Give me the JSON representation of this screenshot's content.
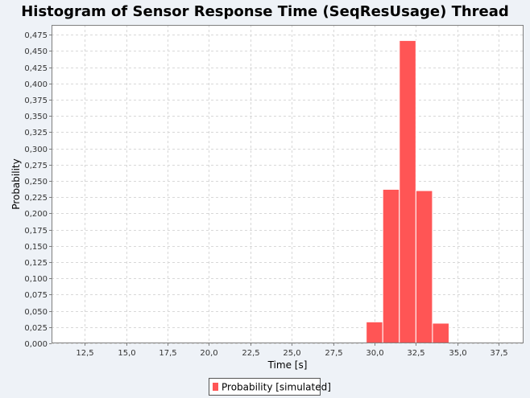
{
  "chart_data": {
    "type": "bar",
    "title": "Histogram of Sensor Response Time (SeqResUsage) Thread",
    "xlabel": "Time [s]",
    "ylabel": "Probability",
    "xlim": [
      10.5,
      39.0
    ],
    "ylim": [
      0.0,
      0.49
    ],
    "x_ticks": [
      "12,5",
      "15,0",
      "17,5",
      "20,0",
      "22,5",
      "25,0",
      "27,5",
      "30,0",
      "32,5",
      "35,0",
      "37,5"
    ],
    "y_ticks": [
      "0,000",
      "0,025",
      "0,050",
      "0,075",
      "0,100",
      "0,125",
      "0,150",
      "0,175",
      "0,200",
      "0,225",
      "0,250",
      "0,275",
      "0,300",
      "0,325",
      "0,350",
      "0,375",
      "0,400",
      "0,425",
      "0,450",
      "0,475"
    ],
    "bin_width": 1.0,
    "series": [
      {
        "name": "Probability [simulated]",
        "color": "#ff5555",
        "bins": [
          {
            "start": 29.5,
            "value": 0.033
          },
          {
            "start": 30.5,
            "value": 0.237
          },
          {
            "start": 31.5,
            "value": 0.466
          },
          {
            "start": 32.5,
            "value": 0.235
          },
          {
            "start": 33.5,
            "value": 0.031
          }
        ]
      }
    ],
    "grid": true,
    "legend_position": "bottom"
  }
}
